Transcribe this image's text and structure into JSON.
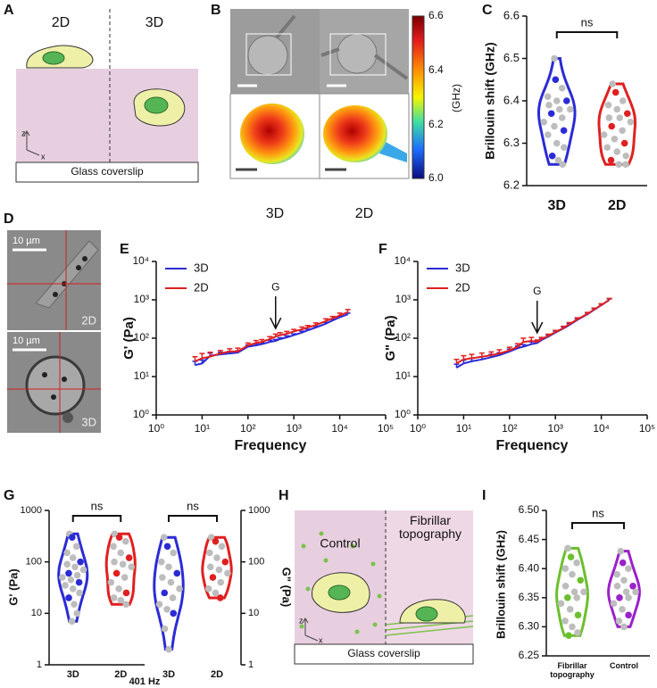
{
  "panel_labels": [
    "A",
    "B",
    "C",
    "D",
    "E",
    "F",
    "G",
    "H",
    "I"
  ],
  "panel_a": {
    "left": "2D",
    "right": "3D",
    "substrate": "Glass coverslip",
    "axis_z": "z",
    "axis_x": "x"
  },
  "panel_b": {
    "colorbar_ticks": [
      "6.6",
      "6.4",
      "6.2",
      "6.0"
    ],
    "colorbar_unit": "(GHz)",
    "left_label": "3D",
    "right_label": "2D"
  },
  "panel_d": {
    "top_scale": "10 µm",
    "top_label": "2D",
    "bottom_scale": "10 µm",
    "bottom_label": "3D"
  },
  "panel_h": {
    "left": "Control",
    "right": "Fibrillar topography",
    "substrate": "Glass coverslip",
    "axis_z": "z",
    "axis_x": "x"
  },
  "chart_data": [
    {
      "type": "violin",
      "ylabel": "Brillouin shift  (GHz)",
      "categories": [
        "3D",
        "2D"
      ],
      "colors": [
        "#2b2bd6",
        "#e02020"
      ],
      "values": [
        [
          6.5,
          6.45,
          6.43,
          6.41,
          6.4,
          6.4,
          6.39,
          6.38,
          6.38,
          6.37,
          6.36,
          6.35,
          6.34,
          6.33,
          6.32,
          6.3,
          6.29,
          6.27,
          6.26,
          6.25
        ],
        [
          6.44,
          6.42,
          6.4,
          6.39,
          6.38,
          6.37,
          6.36,
          6.36,
          6.35,
          6.34,
          6.33,
          6.32,
          6.31,
          6.3,
          6.29,
          6.28,
          6.27,
          6.26,
          6.25,
          6.25
        ]
      ],
      "ylim": [
        6.2,
        6.6
      ],
      "yticks": [
        6.2,
        6.3,
        6.4,
        6.5,
        6.6
      ],
      "annotation": "ns"
    },
    {
      "type": "line",
      "xlabel": "Frequency",
      "ylabel": "G'  (Pa)",
      "x": [
        7,
        10,
        15,
        25,
        40,
        60,
        100,
        150,
        200,
        300,
        400,
        500,
        700,
        1000,
        1500,
        2000,
        3000,
        5000,
        7000,
        10000,
        15000
      ],
      "series": [
        {
          "name": "3D",
          "color": "#2b2bd6",
          "values": [
            20,
            22,
            35,
            38,
            40,
            42,
            60,
            65,
            70,
            80,
            85,
            95,
            105,
            120,
            140,
            160,
            190,
            240,
            290,
            350,
            420
          ],
          "errors": [
            5,
            5,
            6,
            5,
            5,
            5,
            6,
            6,
            6,
            8,
            8,
            8,
            10,
            10,
            12,
            12,
            15,
            18,
            20,
            25,
            30
          ]
        },
        {
          "name": "2D",
          "color": "#e02020",
          "values": [
            25,
            30,
            33,
            40,
            45,
            45,
            65,
            75,
            80,
            95,
            110,
            120,
            130,
            150,
            170,
            190,
            220,
            280,
            330,
            390,
            480
          ],
          "errors": [
            8,
            10,
            10,
            8,
            8,
            10,
            10,
            12,
            12,
            15,
            18,
            20,
            20,
            20,
            25,
            25,
            30,
            40,
            40,
            60,
            80
          ]
        }
      ],
      "xlim": [
        1,
        100000
      ],
      "ylim": [
        1,
        10000
      ],
      "xticks": [
        {
          "value": 1,
          "label": "10⁰"
        },
        {
          "value": 10,
          "label": "10¹"
        },
        {
          "value": 100,
          "label": "10²"
        },
        {
          "value": 1000,
          "label": "10³"
        },
        {
          "value": 10000,
          "label": "10⁴"
        },
        {
          "value": 100000,
          "label": "10⁵"
        }
      ],
      "yticks": [
        {
          "value": 1,
          "label": "10⁰"
        },
        {
          "value": 10,
          "label": "10¹"
        },
        {
          "value": 100,
          "label": "10²"
        },
        {
          "value": 1000,
          "label": "10³"
        },
        {
          "value": 10000,
          "label": "10⁴"
        }
      ],
      "log_x": true,
      "log_y": true,
      "legend": "upper left",
      "annotation": {
        "text": "G",
        "x": 400,
        "y": 130
      }
    },
    {
      "type": "line",
      "xlabel": "Frequency",
      "ylabel": "G\"  (Pa)",
      "x": [
        7,
        10,
        15,
        25,
        40,
        60,
        100,
        150,
        200,
        300,
        400,
        500,
        700,
        1000,
        1500,
        2000,
        3000,
        5000,
        7000,
        10000,
        15000
      ],
      "series": [
        {
          "name": "3D",
          "color": "#2b2bd6",
          "values": [
            17,
            22,
            25,
            28,
            32,
            36,
            45,
            55,
            60,
            70,
            75,
            90,
            110,
            140,
            180,
            220,
            300,
            420,
            550,
            720,
            1000
          ],
          "errors": [
            4,
            5,
            5,
            5,
            6,
            6,
            7,
            8,
            8,
            10,
            10,
            10,
            12,
            15,
            18,
            20,
            25,
            30,
            40,
            50,
            60
          ]
        },
        {
          "name": "2D",
          "color": "#e02020",
          "values": [
            22,
            28,
            30,
            33,
            36,
            40,
            48,
            60,
            80,
            85,
            80,
            95,
            115,
            145,
            185,
            230,
            310,
            430,
            560,
            730,
            1010
          ],
          "errors": [
            6,
            7,
            8,
            8,
            8,
            10,
            10,
            12,
            20,
            20,
            10,
            10,
            12,
            15,
            20,
            25,
            30,
            40,
            50,
            60,
            80
          ]
        }
      ],
      "xlim": [
        1,
        100000
      ],
      "ylim": [
        1,
        10000
      ],
      "xticks": [
        {
          "value": 1,
          "label": "10⁰"
        },
        {
          "value": 10,
          "label": "10¹"
        },
        {
          "value": 100,
          "label": "10²"
        },
        {
          "value": 1000,
          "label": "10³"
        },
        {
          "value": 10000,
          "label": "10⁴"
        },
        {
          "value": 100000,
          "label": "10⁵"
        }
      ],
      "yticks": [
        {
          "value": 1,
          "label": "10⁰"
        },
        {
          "value": 10,
          "label": "10¹"
        },
        {
          "value": 100,
          "label": "10²"
        },
        {
          "value": 1000,
          "label": "10³"
        },
        {
          "value": 10000,
          "label": "10⁴"
        }
      ],
      "log_x": true,
      "log_y": true,
      "legend": "upper left",
      "annotation": {
        "text": "G",
        "x": 400,
        "y": 100
      }
    },
    {
      "type": "violin",
      "ylabel": "G'  (Pa)",
      "xlabel": "401 Hz",
      "categories": [
        "3D",
        "2D"
      ],
      "colors": [
        "#2b2bd6",
        "#e02020"
      ],
      "values": [
        [
          350,
          300,
          200,
          150,
          120,
          100,
          90,
          80,
          70,
          60,
          55,
          50,
          45,
          40,
          35,
          30,
          25,
          20,
          15,
          10,
          7
        ],
        [
          350,
          300,
          250,
          200,
          150,
          120,
          100,
          90,
          80,
          60,
          50,
          40,
          30,
          25,
          20,
          18,
          15
        ]
      ],
      "ylim": [
        1,
        1000
      ],
      "yticks": [
        1,
        10,
        100,
        1000
      ],
      "log_y": true,
      "annotation": "ns"
    },
    {
      "type": "violin",
      "ylabel": "G\"  (Pa)",
      "categories": [
        "3D",
        "2D"
      ],
      "colors": [
        "#2b2bd6",
        "#e02020"
      ],
      "values": [
        [
          300,
          200,
          150,
          100,
          80,
          60,
          50,
          40,
          30,
          25,
          20,
          15,
          12,
          10,
          5,
          2
        ],
        [
          300,
          250,
          200,
          150,
          120,
          100,
          80,
          70,
          60,
          50,
          40,
          30,
          25,
          20
        ]
      ],
      "ylim": [
        1,
        1000
      ],
      "yticks": [
        1,
        10,
        100,
        1000
      ],
      "log_y": true,
      "y_axis_side": "right",
      "annotation": "ns"
    },
    {
      "type": "violin",
      "ylabel": "Brillouin shift  (GHz)",
      "categories": [
        "Fibrillar topography",
        "Control"
      ],
      "colors": [
        "#6cbf2e",
        "#9a22c9"
      ],
      "values": [
        [
          6.435,
          6.42,
          6.41,
          6.4,
          6.39,
          6.38,
          6.37,
          6.36,
          6.36,
          6.35,
          6.35,
          6.34,
          6.33,
          6.32,
          6.31,
          6.3,
          6.29,
          6.285
        ],
        [
          6.43,
          6.41,
          6.4,
          6.39,
          6.38,
          6.37,
          6.37,
          6.36,
          6.36,
          6.35,
          6.35,
          6.34,
          6.33,
          6.32,
          6.31,
          6.3
        ]
      ],
      "ylim": [
        6.25,
        6.5
      ],
      "yticks": [
        6.25,
        {
          "value": 6.3,
          "label": "6.30"
        },
        6.35,
        {
          "value": 6.4,
          "label": "6.40"
        },
        6.45,
        {
          "value": 6.5,
          "label": "6.50"
        }
      ],
      "annotation": "ns"
    }
  ]
}
